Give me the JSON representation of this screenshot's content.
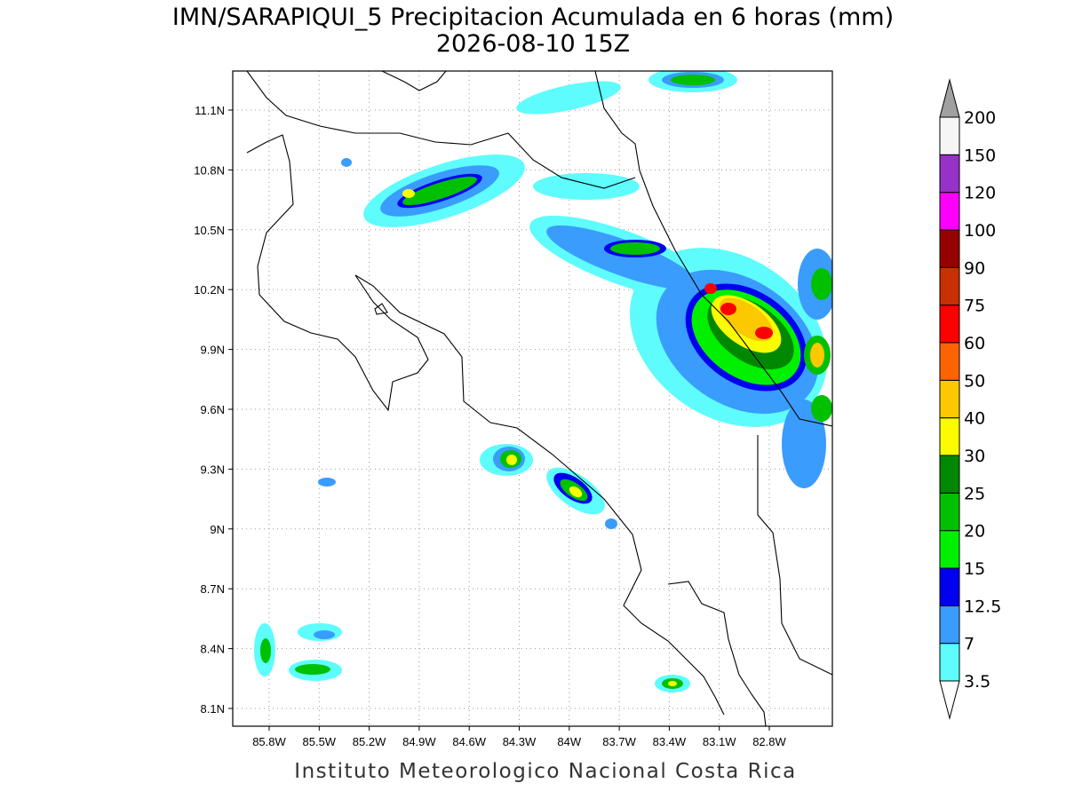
{
  "title": "IMN/SARAPIQUI_5 Precipitacion Acumulada en 6 horas (mm)",
  "subtitle": "2026-08-10 15Z",
  "map": {
    "lat_labels": [
      "11.1N",
      "10.8N",
      "10.5N",
      "10.2N",
      "9.9N",
      "9.6N",
      "9.3N",
      "9N",
      "8.7N",
      "8.4N",
      "8.1N"
    ],
    "lon_labels": [
      "85.8W",
      "85.5W",
      "85.2W",
      "84.9W",
      "84.6W",
      "84.3W",
      "84W",
      "83.7W",
      "83.4W",
      "83.1W",
      "82.8W"
    ]
  },
  "colorbar": {
    "labels": [
      "3.5",
      "7",
      "12.5",
      "15",
      "20",
      "25",
      "30",
      "40",
      "50",
      "60",
      "75",
      "90",
      "100",
      "120",
      "150",
      "200"
    ],
    "colors": [
      "#5efcfc",
      "#3a9cfc",
      "#0000f0",
      "#00f000",
      "#00c000",
      "#008800",
      "#fcfc00",
      "#fcc800",
      "#fc6400",
      "#fc0000",
      "#c83000",
      "#960000",
      "#fc00fc",
      "#9632c8",
      "#f5f5f5"
    ],
    "below_color": "#ffffff",
    "above_color": "#a0a0a0"
  },
  "footer": "Instituto Meteorologico Nacional Costa Rica"
}
